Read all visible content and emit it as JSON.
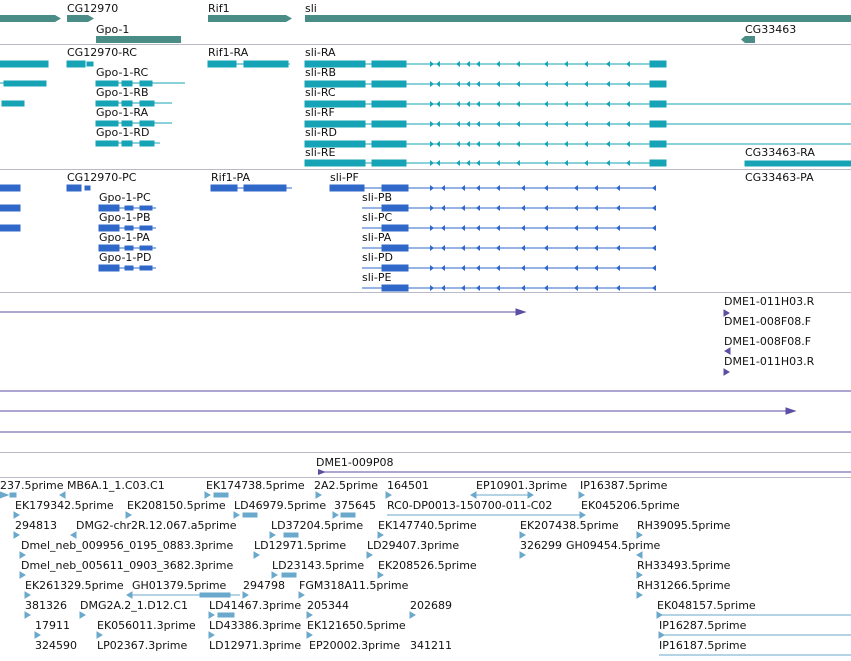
{
  "colors": {
    "gene": "#4a8c86",
    "transcript": "#17a3b6",
    "protein": "#2f68c9",
    "cdna": "#5e4ea3",
    "est": "#6aa8cc",
    "separator": "#b9b9c8"
  },
  "genes": {
    "labels": [
      "CG12970",
      "Gpo-1",
      "Rif1",
      "sli",
      "CG33463"
    ]
  },
  "transcripts": {
    "labels": [
      "CG12970-RC",
      "Gpo-1-RC",
      "Gpo-1-RB",
      "Gpo-1-RA",
      "Gpo-1-RD",
      "Rif1-RA",
      "sli-RA",
      "sli-RB",
      "sli-RC",
      "sli-RF",
      "sli-RD",
      "sli-RE",
      "CG33463-RA"
    ]
  },
  "proteins": {
    "labels": [
      "CG12970-PC",
      "Gpo-1-PC",
      "Gpo-1-PB",
      "Gpo-1-PA",
      "Gpo-1-PD",
      "Rif1-PA",
      "sli-PF",
      "sli-PB",
      "sli-PC",
      "sli-PA",
      "sli-PD",
      "sli-PE",
      "CG33463-PA"
    ]
  },
  "cdna": {
    "labels": [
      "DME1-011H03.R",
      "DME1-008F08.F",
      "DME1-008F08.F",
      "DME1-011H03.R"
    ]
  },
  "clone": {
    "labels": [
      "DME1-009P08"
    ]
  },
  "ests": {
    "labels": [
      "237.5prime",
      "MB6A.1_1.C03.C1",
      "EK174738.5prime",
      "2A2.5prime",
      "164501",
      "EP10901.3prime",
      "IP16387.5prime",
      "EK179342.5prime",
      "EK208150.5prime",
      "LD46979.5prime",
      "375645",
      "RC0-DP0013-150700-011-C02",
      "EK045206.5prime",
      "294813",
      "DMG2-chr2R.12.067.a5prime",
      "LD37204.5prime",
      "EK147740.5prime",
      "EK207438.5prime",
      "RH39095.5prime",
      "Dmel_neb_009956_0195_0883.3prime",
      "LD12971.5prime",
      "LD29407.3prime",
      "326299",
      "GH09454.5prime",
      "Dmel_neb_005611_0903_3682.3prime",
      "LD23143.5prime",
      "EK208526.5prime",
      "RH33493.5prime",
      "EK261329.5prime",
      "GH01379.5prime",
      "294798",
      "FGM318A11.5prime",
      "RH31266.5prime",
      "381326",
      "DMG2A.2_1.D12.C1",
      "LD41467.3prime",
      "205344",
      "202689",
      "EK048157.5prime",
      "17911",
      "EK056011.3prime",
      "LD43386.3prime",
      "EK121650.5prime",
      "IP16287.5prime",
      "324590",
      "LP02367.3prime",
      "LD12971.3prime",
      "EP20002.3prime",
      "341211",
      "IP16187.5prime"
    ]
  }
}
